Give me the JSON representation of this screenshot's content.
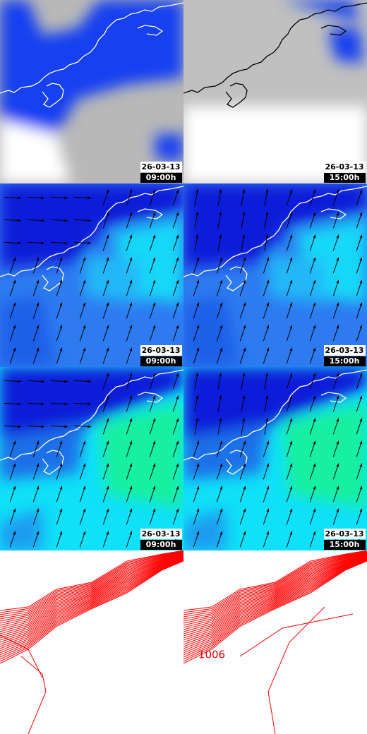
{
  "panels": [
    {
      "date": "26-03-13",
      "time": "09:00h"
    },
    {
      "date": "26-03-13",
      "time": "15:00h"
    },
    {
      "date": "26-03-13",
      "time": "09:00h"
    },
    {
      "date": "26-03-13",
      "time": "15:00h"
    },
    {
      "date": "26-03-13",
      "time": "09:00h"
    },
    {
      "date": "26-03-13",
      "time": "15:00h"
    }
  ],
  "isobar_label": "1006"
}
